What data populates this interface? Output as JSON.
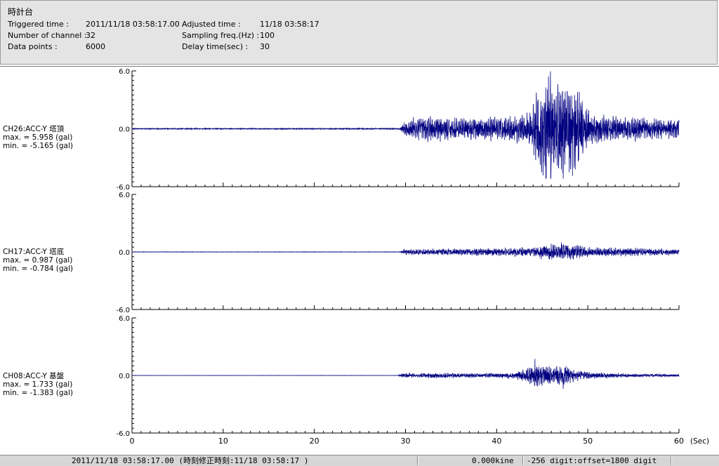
{
  "header": {
    "station": "時計台",
    "triggered_label": "Triggered time :",
    "triggered_value": "2011/11/18 03:58:17.00",
    "channels_label": "Number of channel :",
    "channels_value": "32",
    "datapoints_label": "Data points :",
    "datapoints_value": "6000",
    "adjusted_label": "Adjusted time :",
    "adjusted_value": "11/18 03:58:17",
    "sampling_label": "Sampling freq.(Hz) :",
    "sampling_value": "100",
    "delay_label": "Delay time(sec) :",
    "delay_value": "30"
  },
  "channels": [
    {
      "name": "CH26:ACC-Y 塔頂",
      "max": "max. = 5.958 (gal)",
      "min": "min. = -5.165 (gal)"
    },
    {
      "name": "CH17:ACC-Y 塔底",
      "max": "max. = 0.987 (gal)",
      "min": "min. = -0.784 (gal)"
    },
    {
      "name": "CH08:ACC-Y 基盤",
      "max": "max. = 1.733 (gal)",
      "min": "min. = -1.383 (gal)"
    }
  ],
  "chart_data": {
    "type": "line",
    "xlabel": "(Sec)",
    "xlim": [
      0,
      60
    ],
    "x_ticks": [
      "0",
      "10",
      "20",
      "30",
      "40",
      "50",
      "60"
    ],
    "ylim": [
      -6.0,
      6.0
    ],
    "y_ticks": [
      "6.0",
      "0.0",
      "-6.0"
    ],
    "line_color": "#000080",
    "series": [
      {
        "name": "CH26:ACC-Y 塔頂",
        "max": 5.958,
        "min": -5.165,
        "max_time": 45.9,
        "min_time": 45.4,
        "envelope": [
          [
            0,
            0.05
          ],
          [
            29.4,
            0.06
          ],
          [
            29.8,
            0.6
          ],
          [
            31,
            1.1
          ],
          [
            33,
            1.2
          ],
          [
            36,
            1.0
          ],
          [
            38,
            1.1
          ],
          [
            42,
            1.2
          ],
          [
            43.5,
            1.6
          ],
          [
            44.3,
            3.2
          ],
          [
            45.5,
            4.8
          ],
          [
            47,
            5.0
          ],
          [
            48.5,
            4.3
          ],
          [
            49.5,
            3.0
          ],
          [
            50.3,
            1.6
          ],
          [
            52,
            1.2
          ],
          [
            56,
            1.1
          ],
          [
            60,
            0.9
          ]
        ]
      },
      {
        "name": "CH17:ACC-Y 塔底",
        "max": 0.987,
        "min": -0.784,
        "max_time": 47.1,
        "min_time": 45.8,
        "envelope": [
          [
            0,
            0.02
          ],
          [
            29.4,
            0.02
          ],
          [
            29.8,
            0.25
          ],
          [
            33,
            0.3
          ],
          [
            38,
            0.35
          ],
          [
            44,
            0.45
          ],
          [
            45,
            0.7
          ],
          [
            47,
            0.8
          ],
          [
            49,
            0.7
          ],
          [
            50,
            0.45
          ],
          [
            53,
            0.4
          ],
          [
            57,
            0.35
          ],
          [
            60,
            0.25
          ]
        ]
      },
      {
        "name": "CH08:ACC-Y 基盤",
        "max": 1.733,
        "min": -1.383,
        "max_time": 44.2,
        "min_time": 47.3,
        "envelope": [
          [
            0,
            0.01
          ],
          [
            29.2,
            0.01
          ],
          [
            29.6,
            0.2
          ],
          [
            33,
            0.25
          ],
          [
            38,
            0.2
          ],
          [
            42,
            0.3
          ],
          [
            43.5,
            0.8
          ],
          [
            44.5,
            1.1
          ],
          [
            46,
            0.9
          ],
          [
            47.5,
            1.0
          ],
          [
            48.5,
            0.6
          ],
          [
            50,
            0.35
          ],
          [
            55,
            0.15
          ],
          [
            60,
            0.12
          ]
        ]
      }
    ]
  },
  "statusbar": {
    "time_text": "2011/11/18 03:58:17.00  (時刻修正時刻:11/18 03:58:17  )",
    "kine_text": "0.000kine",
    "digit_text": "-256 digit:offset=1800 digit"
  }
}
